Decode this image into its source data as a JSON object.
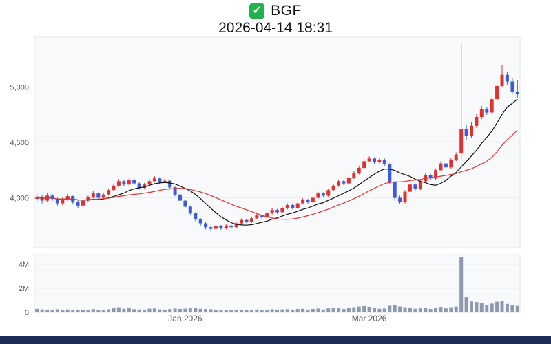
{
  "header": {
    "check_glyph": "✓",
    "check_color": "#22b14c",
    "symbol": "BGF",
    "timestamp": "2026-04-14 18:31"
  },
  "footer": {
    "bar_color": "#1d2b55"
  },
  "chart_data": {
    "type": "candlestick",
    "title": "BGF",
    "subtitle": "2026-04-14 18:31",
    "legend_position": "none",
    "grid": true,
    "ylim": [
      3550,
      5450
    ],
    "volume_ylim": [
      0,
      4800000
    ],
    "price_ticks": [
      4000,
      4500,
      5000
    ],
    "price_tick_labels": [
      "4,000",
      "4,500",
      "5,000"
    ],
    "volume_ticks": [
      0,
      2000000,
      4000000
    ],
    "volume_tick_labels": [
      "0",
      "2M",
      "4M"
    ],
    "x_ticks": [
      {
        "label": "Jan 2026",
        "index": 29
      },
      {
        "label": "Mar 2026",
        "index": 65
      }
    ],
    "moving_averages": [
      {
        "name": "MA10",
        "window": 10,
        "color": "#111111"
      },
      {
        "name": "MA20",
        "window": 20,
        "color": "#e03131"
      }
    ],
    "colors": {
      "up": "#e03131",
      "down": "#3b5bdb",
      "volume": "#8d99ae",
      "grid": "#ebedf0",
      "panel_bg": "#f8f9fa",
      "panel_border": "#e3e5e8",
      "axis_text": "#555555"
    },
    "candle_fields": [
      "date",
      "open",
      "high",
      "low",
      "close",
      "volume"
    ],
    "candles": [
      [
        "2025-12-01",
        3990,
        4040,
        3960,
        4010,
        300000
      ],
      [
        "2025-12-02",
        4010,
        4025,
        3950,
        3975,
        250000
      ],
      [
        "2025-12-03",
        3975,
        4040,
        3960,
        4020,
        220000
      ],
      [
        "2025-12-04",
        4020,
        4035,
        3970,
        3990,
        180000
      ],
      [
        "2025-12-05",
        3990,
        4000,
        3930,
        3950,
        260000
      ],
      [
        "2025-12-08",
        3950,
        4005,
        3935,
        3985,
        210000
      ],
      [
        "2025-12-09",
        3985,
        4035,
        3975,
        4015,
        240000
      ],
      [
        "2025-12-10",
        4015,
        4020,
        3945,
        3960,
        200000
      ],
      [
        "2025-12-11",
        3960,
        3980,
        3910,
        3930,
        230000
      ],
      [
        "2025-12-12",
        3930,
        3990,
        3920,
        3975,
        190000
      ],
      [
        "2025-12-15",
        3975,
        4020,
        3960,
        4005,
        210000
      ],
      [
        "2025-12-16",
        4005,
        4060,
        3995,
        4040,
        280000
      ],
      [
        "2025-12-17",
        4040,
        4050,
        3985,
        4000,
        200000
      ],
      [
        "2025-12-18",
        4000,
        4045,
        3990,
        4030,
        180000
      ],
      [
        "2025-12-19",
        4030,
        4085,
        4020,
        4070,
        260000
      ],
      [
        "2025-12-22",
        4070,
        4130,
        4060,
        4110,
        380000
      ],
      [
        "2025-12-23",
        4110,
        4170,
        4100,
        4150,
        420000
      ],
      [
        "2025-12-24",
        4150,
        4160,
        4105,
        4120,
        300000
      ],
      [
        "2025-12-26",
        4120,
        4185,
        4110,
        4160,
        350000
      ],
      [
        "2025-12-29",
        4160,
        4175,
        4115,
        4130,
        270000
      ],
      [
        "2025-12-30",
        4130,
        4140,
        4075,
        4090,
        240000
      ],
      [
        "2025-12-31",
        4090,
        4135,
        4080,
        4120,
        200000
      ],
      [
        "2026-01-02",
        4120,
        4170,
        4110,
        4150,
        310000
      ],
      [
        "2026-01-05",
        4150,
        4195,
        4140,
        4175,
        330000
      ],
      [
        "2026-01-06",
        4175,
        4185,
        4125,
        4140,
        250000
      ],
      [
        "2026-01-07",
        4140,
        4175,
        4130,
        4155,
        220000
      ],
      [
        "2026-01-08",
        4155,
        4160,
        4080,
        4095,
        280000
      ],
      [
        "2026-01-09",
        4095,
        4100,
        4015,
        4030,
        320000
      ],
      [
        "2026-01-12",
        4030,
        4040,
        3960,
        3975,
        290000
      ],
      [
        "2026-01-13",
        3975,
        3985,
        3905,
        3920,
        310000
      ],
      [
        "2026-01-14",
        3920,
        3930,
        3845,
        3860,
        340000
      ],
      [
        "2026-01-15",
        3860,
        3870,
        3790,
        3805,
        360000
      ],
      [
        "2026-01-16",
        3805,
        3815,
        3750,
        3770,
        300000
      ],
      [
        "2026-01-19",
        3770,
        3780,
        3715,
        3735,
        280000
      ],
      [
        "2026-01-20",
        3735,
        3750,
        3700,
        3720,
        260000
      ],
      [
        "2026-01-21",
        3720,
        3760,
        3705,
        3745,
        200000
      ],
      [
        "2026-01-22",
        3745,
        3755,
        3710,
        3725,
        180000
      ],
      [
        "2026-01-23",
        3725,
        3765,
        3715,
        3750,
        190000
      ],
      [
        "2026-01-26",
        3750,
        3760,
        3720,
        3735,
        170000
      ],
      [
        "2026-01-27",
        3735,
        3785,
        3725,
        3770,
        210000
      ],
      [
        "2026-01-28",
        3770,
        3815,
        3760,
        3800,
        230000
      ],
      [
        "2026-01-29",
        3800,
        3810,
        3770,
        3785,
        180000
      ],
      [
        "2026-01-30",
        3785,
        3830,
        3775,
        3815,
        220000
      ],
      [
        "2026-02-02",
        3815,
        3855,
        3805,
        3840,
        240000
      ],
      [
        "2026-02-03",
        3840,
        3850,
        3810,
        3825,
        190000
      ],
      [
        "2026-02-04",
        3825,
        3875,
        3815,
        3860,
        230000
      ],
      [
        "2026-02-05",
        3860,
        3905,
        3850,
        3890,
        260000
      ],
      [
        "2026-02-06",
        3890,
        3900,
        3855,
        3870,
        200000
      ],
      [
        "2026-02-09",
        3870,
        3920,
        3860,
        3905,
        250000
      ],
      [
        "2026-02-10",
        3905,
        3950,
        3895,
        3935,
        270000
      ],
      [
        "2026-02-11",
        3935,
        3945,
        3895,
        3910,
        210000
      ],
      [
        "2026-02-12",
        3910,
        3965,
        3900,
        3950,
        280000
      ],
      [
        "2026-02-13",
        3950,
        3995,
        3940,
        3980,
        300000
      ],
      [
        "2026-02-16",
        3980,
        3990,
        3945,
        3960,
        220000
      ],
      [
        "2026-02-17",
        3960,
        4015,
        3950,
        4000,
        290000
      ],
      [
        "2026-02-18",
        4000,
        4055,
        3990,
        4040,
        320000
      ],
      [
        "2026-02-19",
        4040,
        4050,
        4005,
        4020,
        240000
      ],
      [
        "2026-02-20",
        4020,
        4085,
        4010,
        4070,
        330000
      ],
      [
        "2026-02-23",
        4070,
        4125,
        4060,
        4110,
        360000
      ],
      [
        "2026-02-24",
        4110,
        4165,
        4100,
        4150,
        400000
      ],
      [
        "2026-02-25",
        4150,
        4160,
        4115,
        4130,
        280000
      ],
      [
        "2026-02-26",
        4130,
        4195,
        4120,
        4180,
        380000
      ],
      [
        "2026-02-27",
        4180,
        4240,
        4170,
        4220,
        420000
      ],
      [
        "2026-03-02",
        4220,
        4290,
        4210,
        4270,
        480000
      ],
      [
        "2026-03-03",
        4270,
        4350,
        4260,
        4330,
        520000
      ],
      [
        "2026-03-04",
        4330,
        4375,
        4320,
        4355,
        460000
      ],
      [
        "2026-03-05",
        4355,
        4365,
        4305,
        4320,
        350000
      ],
      [
        "2026-03-06",
        4320,
        4360,
        4310,
        4345,
        300000
      ],
      [
        "2026-03-09",
        4345,
        4355,
        4290,
        4305,
        320000
      ],
      [
        "2026-03-10",
        4305,
        4310,
        4120,
        4145,
        550000
      ],
      [
        "2026-03-11",
        4145,
        4150,
        3975,
        4000,
        600000
      ],
      [
        "2026-03-12",
        4000,
        4020,
        3945,
        3960,
        480000
      ],
      [
        "2026-03-13",
        3960,
        4070,
        3950,
        4055,
        420000
      ],
      [
        "2026-03-16",
        4055,
        4140,
        4045,
        4120,
        380000
      ],
      [
        "2026-03-17",
        4120,
        4130,
        4065,
        4080,
        300000
      ],
      [
        "2026-03-18",
        4080,
        4165,
        4070,
        4150,
        340000
      ],
      [
        "2026-03-19",
        4150,
        4220,
        4140,
        4205,
        360000
      ],
      [
        "2026-03-20",
        4205,
        4215,
        4160,
        4175,
        280000
      ],
      [
        "2026-03-23",
        4175,
        4265,
        4165,
        4250,
        400000
      ],
      [
        "2026-03-24",
        4250,
        4330,
        4240,
        4310,
        450000
      ],
      [
        "2026-03-25",
        4310,
        4320,
        4260,
        4275,
        330000
      ],
      [
        "2026-03-26",
        4275,
        4360,
        4265,
        4340,
        420000
      ],
      [
        "2026-03-27",
        4340,
        4410,
        4330,
        4390,
        480000
      ],
      [
        "2026-03-30",
        4400,
        5390,
        4350,
        4620,
        4600000
      ],
      [
        "2026-03-31",
        4620,
        4660,
        4520,
        4560,
        1250000
      ],
      [
        "2026-04-01",
        4560,
        4680,
        4540,
        4650,
        900000
      ],
      [
        "2026-04-02",
        4650,
        4760,
        4630,
        4730,
        850000
      ],
      [
        "2026-04-03",
        4730,
        4830,
        4710,
        4800,
        780000
      ],
      [
        "2026-04-06",
        4800,
        4820,
        4750,
        4770,
        600000
      ],
      [
        "2026-04-07",
        4770,
        4910,
        4760,
        4890,
        720000
      ],
      [
        "2026-04-08",
        4890,
        5040,
        4880,
        5010,
        880000
      ],
      [
        "2026-04-09",
        5010,
        5200,
        5000,
        5110,
        950000
      ],
      [
        "2026-04-10",
        5110,
        5140,
        5020,
        5050,
        700000
      ],
      [
        "2026-04-13",
        5050,
        5080,
        4940,
        4960,
        620000
      ],
      [
        "2026-04-14",
        4960,
        5060,
        4905,
        4940,
        540000
      ]
    ]
  }
}
